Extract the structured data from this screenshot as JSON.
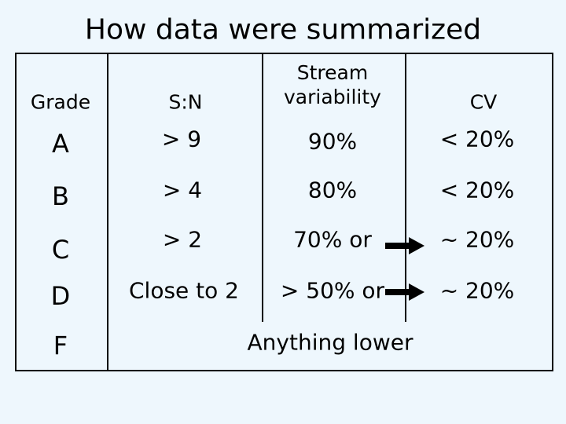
{
  "header": {
    "title": "How data were summarized"
  },
  "table": {
    "columns": [
      "Grade",
      "S:N",
      "Stream variability",
      "CV"
    ],
    "rows": [
      [
        "A",
        "> 9",
        "90%",
        "< 20%"
      ],
      [
        "B",
        "> 4",
        "80%",
        "< 20%"
      ],
      [
        "C",
        "> 2",
        "70% or",
        "~ 20%"
      ],
      [
        "D",
        "Close to 2",
        "> 50% or",
        "~ 20%"
      ],
      [
        "F",
        "Anything lower"
      ]
    ]
  }
}
